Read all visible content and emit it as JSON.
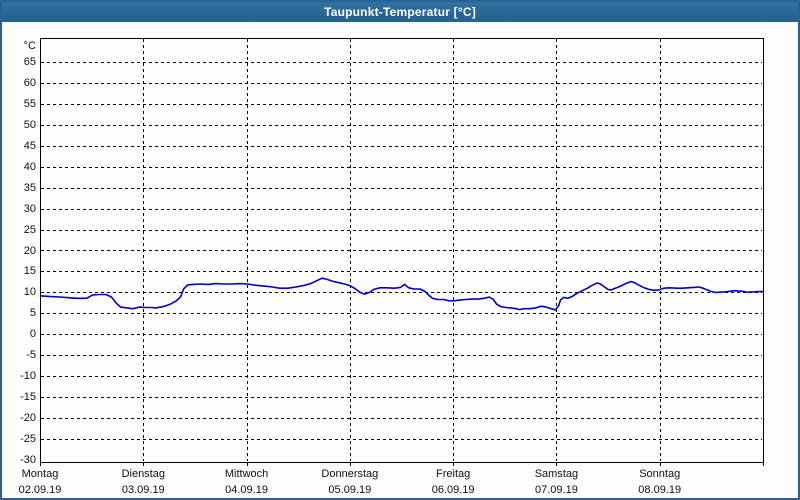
{
  "window": {
    "title": "Taupunkt-Temperatur [°C]",
    "title_bar_color": "#2a6599",
    "border_color": "#25639a",
    "background_color": "#fdfdfb"
  },
  "chart_data": {
    "type": "line",
    "title": "Taupunkt-Temperatur [°C]",
    "grid": "dashed",
    "legend": "none",
    "y_axis": {
      "unit_label": "°C",
      "tick_min": -30,
      "tick_max": 65,
      "tick_step": 5,
      "plot_min": -30.5,
      "plot_max": 70.7,
      "grid_color": "#000000"
    },
    "x_axis": {
      "unit": "days",
      "range_days": [
        0,
        7
      ],
      "day_ticks": [
        {
          "weekday": "Montag",
          "date": "02.09.19"
        },
        {
          "weekday": "Dienstag",
          "date": "03.09.19"
        },
        {
          "weekday": "Mittwoch",
          "date": "04.09.19"
        },
        {
          "weekday": "Donnerstag",
          "date": "05.09.19"
        },
        {
          "weekday": "Freitag",
          "date": "06.09.19"
        },
        {
          "weekday": "Samstag",
          "date": "07.09.19"
        },
        {
          "weekday": "Sonntag",
          "date": "08.09.19"
        }
      ]
    },
    "series": [
      {
        "name": "Taupunkt-Temperatur",
        "color": "#0000cc",
        "points": [
          [
            0.0,
            9.2
          ],
          [
            0.1,
            9.0
          ],
          [
            0.19,
            8.9
          ],
          [
            0.29,
            8.7
          ],
          [
            0.37,
            8.6
          ],
          [
            0.45,
            8.6
          ],
          [
            0.51,
            9.4
          ],
          [
            0.57,
            9.5
          ],
          [
            0.64,
            9.5
          ],
          [
            0.69,
            8.9
          ],
          [
            0.74,
            7.4
          ],
          [
            0.78,
            6.5
          ],
          [
            0.84,
            6.3
          ],
          [
            0.9,
            6.1
          ],
          [
            0.96,
            6.5
          ],
          [
            1.02,
            6.4
          ],
          [
            1.08,
            6.4
          ],
          [
            1.12,
            6.3
          ],
          [
            1.17,
            6.5
          ],
          [
            1.22,
            6.8
          ],
          [
            1.27,
            7.3
          ],
          [
            1.32,
            8.0
          ],
          [
            1.36,
            8.9
          ],
          [
            1.39,
            10.8
          ],
          [
            1.43,
            11.8
          ],
          [
            1.48,
            11.9
          ],
          [
            1.55,
            12.0
          ],
          [
            1.63,
            11.9
          ],
          [
            1.7,
            12.1
          ],
          [
            1.78,
            12.0
          ],
          [
            1.86,
            12.0
          ],
          [
            1.94,
            12.1
          ],
          [
            2.01,
            12.0
          ],
          [
            2.09,
            11.7
          ],
          [
            2.17,
            11.5
          ],
          [
            2.25,
            11.3
          ],
          [
            2.32,
            11.0
          ],
          [
            2.4,
            11.0
          ],
          [
            2.48,
            11.3
          ],
          [
            2.56,
            11.7
          ],
          [
            2.62,
            12.1
          ],
          [
            2.68,
            12.8
          ],
          [
            2.73,
            13.4
          ],
          [
            2.78,
            13.1
          ],
          [
            2.84,
            12.6
          ],
          [
            2.9,
            12.3
          ],
          [
            2.95,
            12.0
          ],
          [
            3.0,
            11.6
          ],
          [
            3.05,
            10.9
          ],
          [
            3.1,
            10.0
          ],
          [
            3.14,
            9.6
          ],
          [
            3.19,
            10.0
          ],
          [
            3.23,
            10.7
          ],
          [
            3.29,
            11.1
          ],
          [
            3.36,
            11.1
          ],
          [
            3.43,
            11.0
          ],
          [
            3.49,
            11.2
          ],
          [
            3.53,
            11.9
          ],
          [
            3.57,
            11.1
          ],
          [
            3.62,
            10.8
          ],
          [
            3.68,
            10.8
          ],
          [
            3.73,
            10.2
          ],
          [
            3.77,
            9.2
          ],
          [
            3.8,
            8.6
          ],
          [
            3.85,
            8.3
          ],
          [
            3.91,
            8.3
          ],
          [
            3.96,
            8.0
          ],
          [
            4.01,
            8.0
          ],
          [
            4.07,
            8.2
          ],
          [
            4.12,
            8.3
          ],
          [
            4.18,
            8.4
          ],
          [
            4.24,
            8.4
          ],
          [
            4.3,
            8.6
          ],
          [
            4.35,
            8.9
          ],
          [
            4.39,
            8.3
          ],
          [
            4.42,
            7.2
          ],
          [
            4.46,
            6.6
          ],
          [
            4.51,
            6.4
          ],
          [
            4.56,
            6.3
          ],
          [
            4.61,
            6.1
          ],
          [
            4.64,
            5.9
          ],
          [
            4.69,
            6.1
          ],
          [
            4.74,
            6.1
          ],
          [
            4.8,
            6.3
          ],
          [
            4.85,
            6.7
          ],
          [
            4.9,
            6.5
          ],
          [
            4.95,
            6.1
          ],
          [
            4.99,
            5.8
          ],
          [
            5.02,
            6.8
          ],
          [
            5.04,
            8.2
          ],
          [
            5.07,
            8.8
          ],
          [
            5.11,
            8.6
          ],
          [
            5.15,
            9.0
          ],
          [
            5.2,
            9.8
          ],
          [
            5.25,
            10.4
          ],
          [
            5.3,
            11.0
          ],
          [
            5.34,
            11.6
          ],
          [
            5.39,
            12.2
          ],
          [
            5.42,
            12.1
          ],
          [
            5.46,
            11.4
          ],
          [
            5.5,
            10.7
          ],
          [
            5.53,
            10.6
          ],
          [
            5.57,
            11.0
          ],
          [
            5.62,
            11.5
          ],
          [
            5.67,
            12.1
          ],
          [
            5.72,
            12.6
          ],
          [
            5.76,
            12.3
          ],
          [
            5.8,
            11.7
          ],
          [
            5.85,
            11.1
          ],
          [
            5.9,
            10.7
          ],
          [
            5.94,
            10.5
          ],
          [
            5.99,
            10.6
          ],
          [
            6.04,
            11.0
          ],
          [
            6.1,
            11.1
          ],
          [
            6.16,
            11.0
          ],
          [
            6.22,
            11.0
          ],
          [
            6.27,
            11.1
          ],
          [
            6.33,
            11.2
          ],
          [
            6.38,
            11.3
          ],
          [
            6.42,
            11.0
          ],
          [
            6.46,
            10.6
          ],
          [
            6.5,
            10.2
          ],
          [
            6.54,
            10.0
          ],
          [
            6.6,
            10.1
          ],
          [
            6.66,
            10.2
          ],
          [
            6.72,
            10.4
          ],
          [
            6.78,
            10.3
          ],
          [
            6.84,
            10.1
          ],
          [
            6.89,
            10.1
          ],
          [
            6.95,
            10.2
          ],
          [
            7.0,
            10.2
          ]
        ]
      }
    ]
  }
}
